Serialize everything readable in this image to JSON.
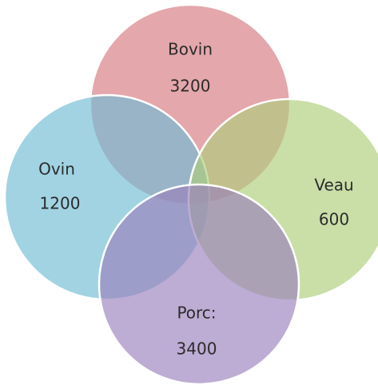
{
  "nodes": [
    {
      "label": "Bovin",
      "value": 3200
    },
    {
      "label": "Ovin",
      "value": 1200
    },
    {
      "label": "Veau",
      "value": 600
    },
    {
      "label": "Porc:",
      "value": 3400
    }
  ]
}
